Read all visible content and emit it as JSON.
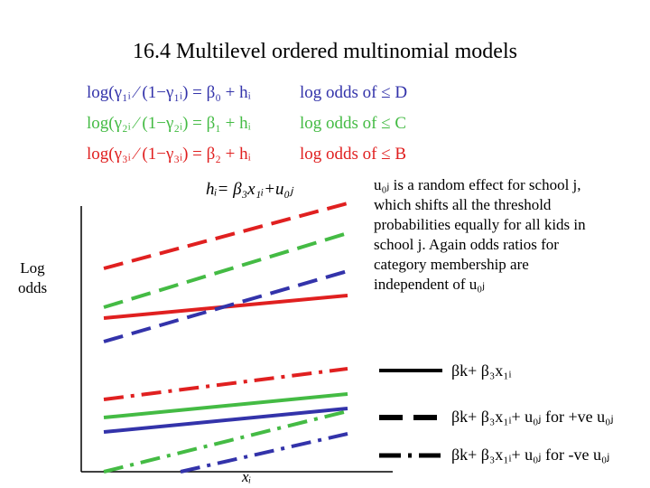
{
  "title": "16.4 Multilevel ordered multinomial models",
  "equations": [
    {
      "formula": "log(γ₁ᵢ ⁄ (1−γ₁ᵢ) = β₀ + hᵢ",
      "meaning": "log odds of ≤ D"
    },
    {
      "formula": "log(γ₂ᵢ ⁄ (1−γ₂ᵢ) = β₁ + hᵢ",
      "meaning": "log odds of ≤ C"
    },
    {
      "formula": "log(γ₃ᵢ ⁄ (1−γ₃ᵢ) = β₂ + hᵢ",
      "meaning": "log odds of ≤ B"
    }
  ],
  "h_equation": "hᵢ= β₃x₁ᵢ+u₀ⱼ",
  "explanation": [
    "u₀ⱼ is a random effect for school j,",
    "which shifts all the threshold",
    "probabilities  equally for all kids in",
    "school j. Again odds ratios for",
    "category membership are",
    "independent of u₀ⱼ"
  ],
  "y_axis_label": "Log odds",
  "x_axis_label": "xᵢ",
  "legend": [
    "βk+ β₃x₁ᵢ",
    "βk+ β₃x₁ᵢ+ u₀ⱼ for +ve u₀ⱼ",
    "βk+ β₃x₁ᵢ+ u₀ⱼ for -ve u₀ⱼ"
  ]
}
